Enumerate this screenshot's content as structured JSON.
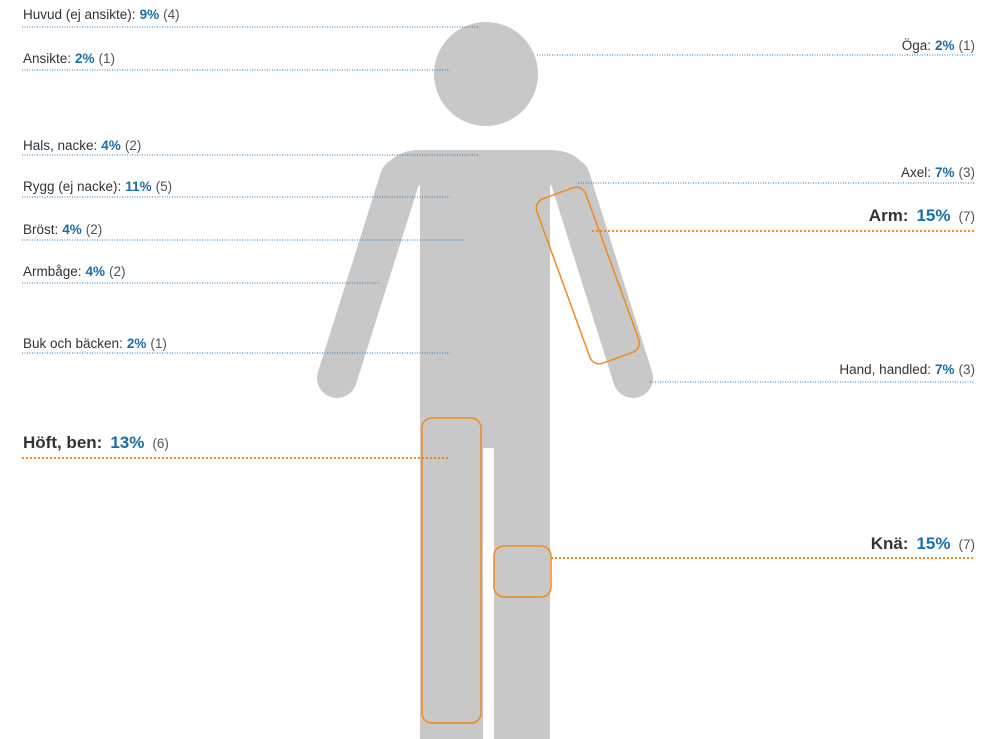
{
  "labels": [
    {
      "name": "Huvud (ej ansikte):",
      "percent": "9%",
      "count": "(4)"
    },
    {
      "name": "Ansikte:",
      "percent": "2%",
      "count": "(1)"
    },
    {
      "name": "Hals, nacke:",
      "percent": "4%",
      "count": "(2)"
    },
    {
      "name": "Rygg (ej nacke):",
      "percent": "11%",
      "count": "(5)"
    },
    {
      "name": "Bröst:",
      "percent": "4%",
      "count": "(2)"
    },
    {
      "name": "Armbåge:",
      "percent": "4%",
      "count": "(2)"
    },
    {
      "name": "Buk och bäcken:",
      "percent": "2%",
      "count": "(1)"
    },
    {
      "name": "Höft, ben:",
      "percent": "13%",
      "count": "(6)"
    },
    {
      "name": "Öga:",
      "percent": "2%",
      "count": "(1)"
    },
    {
      "name": "Axel:",
      "percent": "7%",
      "count": "(3)"
    },
    {
      "name": "Arm:",
      "percent": "15%",
      "count": "(7)"
    },
    {
      "name": "Hand, handled:",
      "percent": "7%",
      "count": "(3)"
    },
    {
      "name": "Knä:",
      "percent": "15%",
      "count": "(7)"
    }
  ]
}
